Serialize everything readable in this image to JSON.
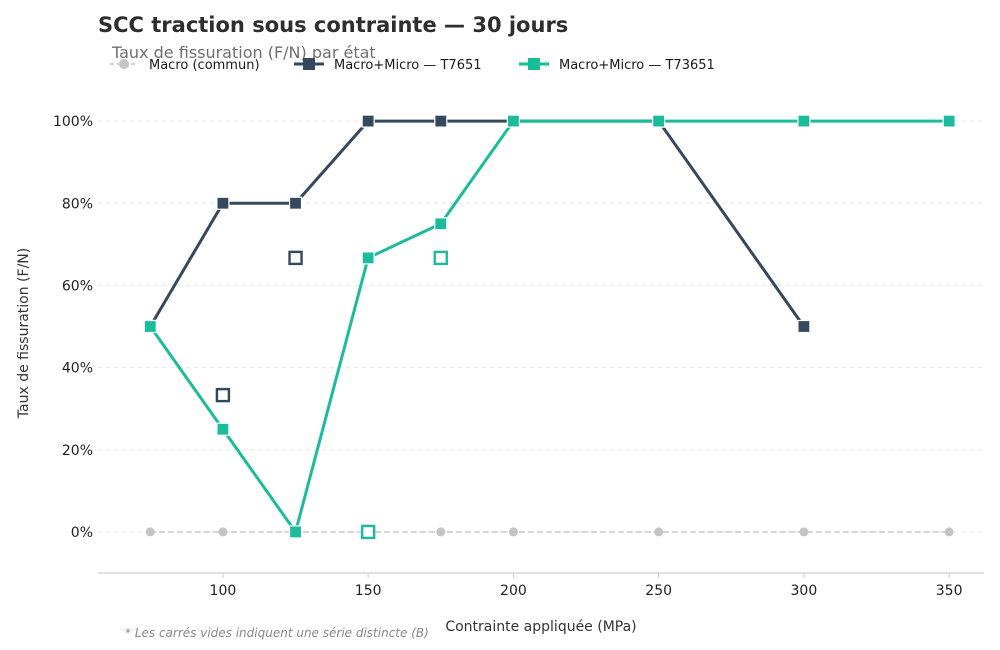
{
  "chart_data": {
    "type": "line",
    "title": "SCC traction sous contrainte — 30 jours",
    "subtitle": "Taux de fissuration (F/N) par état",
    "xlabel": "Contrainte appliquée (MPa)",
    "ylabel": "Taux de fissuration (F/N)",
    "xlim": [
      57,
      362
    ],
    "ylim": [
      -0.1,
      1.1
    ],
    "x_ticks": [
      100,
      150,
      200,
      250,
      300,
      350
    ],
    "y_ticks": [
      0,
      0.2,
      0.4,
      0.6,
      0.8,
      1.0
    ],
    "y_tick_labels": [
      "0%",
      "20%",
      "40%",
      "60%",
      "80%",
      "100%"
    ],
    "grid": "horizontal dashed",
    "legend_position": "top-left",
    "note": "* Les carrés vides indiquent une série distincte (B)",
    "series": [
      {
        "name": "Macro (commun)",
        "color": "#c4c4c4",
        "marker": "circle",
        "style": "dashed",
        "points": [
          [
            75,
            0
          ],
          [
            100,
            0
          ],
          [
            125,
            0
          ],
          [
            150,
            0
          ],
          [
            175,
            0
          ],
          [
            200,
            0
          ],
          [
            250,
            0
          ],
          [
            300,
            0
          ],
          [
            350,
            0
          ]
        ]
      },
      {
        "name": "Macro+Micro — T7651",
        "color": "#34495e",
        "marker": "square",
        "style": "solid",
        "points": [
          [
            75,
            0.5
          ],
          [
            100,
            0.8
          ],
          [
            125,
            0.8
          ],
          [
            150,
            1.0
          ],
          [
            175,
            1.0
          ],
          [
            200,
            1.0
          ],
          [
            250,
            1.0
          ],
          [
            300,
            0.5
          ]
        ]
      },
      {
        "name": "Macro+Micro — T73651",
        "color": "#1abc9c",
        "marker": "square",
        "style": "solid",
        "points": [
          [
            75,
            0.5
          ],
          [
            100,
            0.25
          ],
          [
            125,
            0
          ],
          [
            150,
            0.667
          ],
          [
            175,
            0.75
          ],
          [
            200,
            1.0
          ],
          [
            250,
            1.0
          ],
          [
            300,
            1.0
          ],
          [
            350,
            1.0
          ]
        ]
      }
    ],
    "series_b": [
      {
        "color": "#34495e",
        "marker": "square-open",
        "points": [
          [
            100,
            0.333
          ],
          [
            125,
            0.667
          ]
        ]
      },
      {
        "color": "#1abc9c",
        "marker": "square-open",
        "points": [
          [
            150,
            0
          ],
          [
            175,
            0.667
          ]
        ]
      }
    ]
  }
}
